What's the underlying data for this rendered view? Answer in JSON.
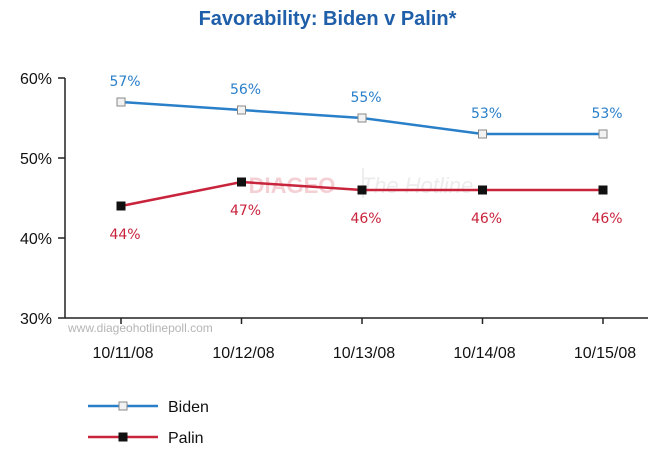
{
  "chart_data": {
    "type": "line",
    "title": "Favorability: Biden v Palin*",
    "categories": [
      "10/11/08",
      "10/12/08",
      "10/13/08",
      "10/14/08",
      "10/15/08"
    ],
    "y_ticks": [
      "30%",
      "40%",
      "50%",
      "60%"
    ],
    "ylim": [
      30,
      60
    ],
    "grid": false,
    "legend_position": "bottom-left",
    "series": [
      {
        "name": "Biden",
        "values": [
          57,
          56,
          55,
          53,
          53
        ],
        "labels": [
          "57%",
          "56%",
          "55%",
          "53%",
          "53%"
        ],
        "color": "#2a7fc9",
        "marker": "square-hollow",
        "label_color": "#2a7fc9",
        "label_position": "above"
      },
      {
        "name": "Palin",
        "values": [
          44,
          47,
          46,
          46,
          46
        ],
        "labels": [
          "44%",
          "47%",
          "46%",
          "46%",
          "46%"
        ],
        "color": "#c8243c",
        "marker": "square-filled",
        "label_color": "#c8243c",
        "label_position": "below"
      }
    ],
    "watermark": {
      "brand": "DIAGEO",
      "paper": "The Hotline",
      "url": "www.diageohotlinepoll.com"
    }
  }
}
